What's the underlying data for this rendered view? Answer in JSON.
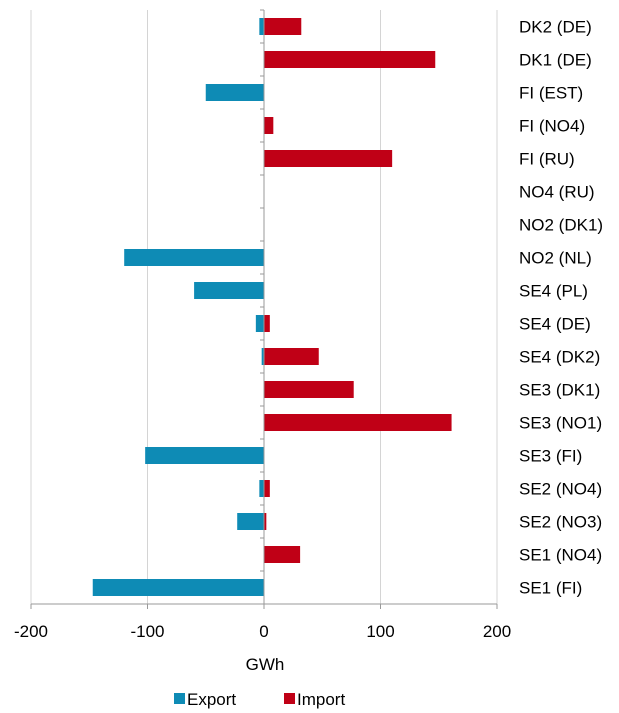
{
  "chart_data": {
    "type": "bar",
    "orientation": "horizontal",
    "categories": [
      "DK2 (DE)",
      "DK1 (DE)",
      "FI (EST)",
      "FI (NO4)",
      "FI (RU)",
      "NO4 (RU)",
      "NO2 (DK1)",
      "NO2 (NL)",
      "SE4 (PL)",
      "SE4 (DE)",
      "SE4 (DK2)",
      "SE3 (DK1)",
      "SE3 (NO1)",
      "SE3 (FI)",
      "SE2 (NO4)",
      "SE2 (NO3)",
      "SE1 (NO4)",
      "SE1 (FI)"
    ],
    "series": [
      {
        "name": "Export",
        "color": "#0e8bb5",
        "values": [
          -4,
          0,
          -50,
          0,
          0,
          0,
          0,
          -120,
          -60,
          -7,
          -2,
          0,
          0,
          -102,
          -4,
          -23,
          0,
          -147
        ]
      },
      {
        "name": "Import",
        "color": "#c00016",
        "values": [
          32,
          147,
          0,
          8,
          110,
          0,
          0,
          0,
          0,
          5,
          47,
          77,
          161,
          0,
          5,
          2,
          31,
          0
        ]
      }
    ],
    "xlabel": "GWh",
    "xlim": [
      -200,
      200
    ],
    "xticks": [
      "-200",
      "-100",
      "0",
      "100",
      "200"
    ],
    "grid": true,
    "legend_position": "bottom"
  }
}
